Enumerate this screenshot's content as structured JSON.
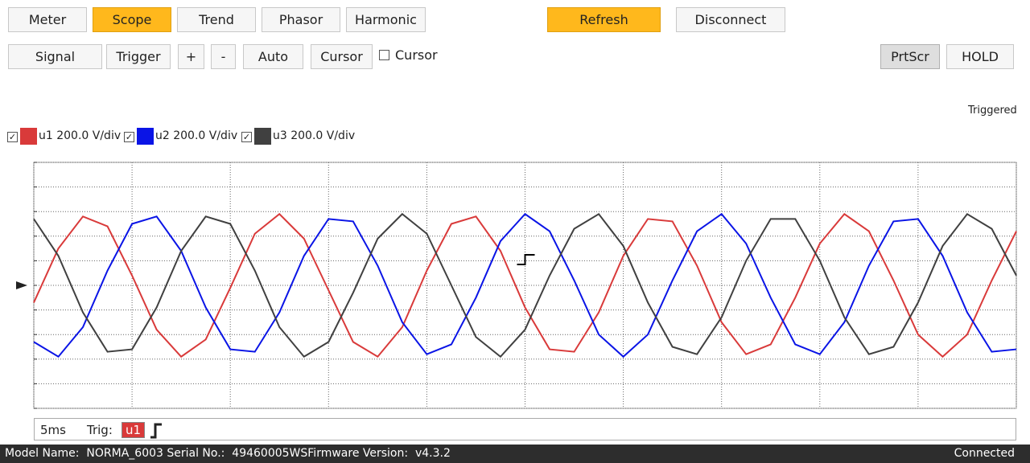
{
  "toolbar": {
    "tabs": [
      {
        "label": "Meter",
        "highlighted": false
      },
      {
        "label": "Scope",
        "highlighted": true
      },
      {
        "label": "Trend",
        "highlighted": false
      },
      {
        "label": "Phasor",
        "highlighted": false
      },
      {
        "label": "Harmonic",
        "highlighted": false
      }
    ],
    "actions": [
      {
        "label": "Refresh",
        "highlighted": true
      },
      {
        "label": "Disconnect",
        "highlighted": false
      }
    ],
    "tools": [
      {
        "label": "Signal"
      },
      {
        "label": "Trigger"
      },
      {
        "label": "+"
      },
      {
        "label": "-"
      },
      {
        "label": "Auto"
      },
      {
        "label": "Cursor"
      }
    ],
    "cursor_checkbox": {
      "label": "Cursor",
      "checked": false
    },
    "right_tools": [
      {
        "label": "PrtScr",
        "pressed": true
      },
      {
        "label": "HOLD",
        "pressed": false
      }
    ]
  },
  "chart_data": {
    "type": "line",
    "status": "Triggered",
    "grid": true,
    "xlim": [
      0,
      10
    ],
    "ylim": [
      -5,
      5
    ],
    "xticks": [
      0,
      1,
      2,
      3,
      4,
      5,
      6,
      7,
      8,
      9,
      10
    ],
    "yticks": [
      -5,
      -4,
      -3,
      -2,
      -1,
      0,
      1,
      2,
      3,
      4,
      5
    ],
    "x": [
      0,
      0.25,
      0.5,
      0.75,
      1,
      1.25,
      1.5,
      1.75,
      2,
      2.25,
      2.5,
      2.75,
      3,
      3.25,
      3.5,
      3.75,
      4,
      4.25,
      4.5,
      4.75,
      5,
      5.25,
      5.5,
      5.75,
      6,
      6.25,
      6.5,
      6.75,
      7,
      7.25,
      7.5,
      7.75,
      8,
      8.25,
      8.5,
      8.75,
      9,
      9.25,
      9.5,
      9.75,
      10
    ],
    "series": [
      {
        "name": "u1 200.0 V/div",
        "color": "#d93a3a",
        "checked": true,
        "values": [
          -0.7,
          1.5,
          2.8,
          2.4,
          0.4,
          -1.8,
          -2.9,
          -2.2,
          -0.1,
          2.1,
          2.9,
          1.9,
          -0.2,
          -2.3,
          -2.9,
          -1.7,
          0.6,
          2.5,
          2.8,
          1.4,
          -0.9,
          -2.6,
          -2.7,
          -1.1,
          1.2,
          2.7,
          2.6,
          0.8,
          -1.5,
          -2.8,
          -2.4,
          -0.5,
          1.7,
          2.9,
          2.2,
          0.2,
          -2.0,
          -2.9,
          -2.0,
          0.2,
          2.2
        ]
      },
      {
        "name": "u2 200.0 V/div",
        "color": "#0a14e6",
        "checked": true,
        "values": [
          -2.3,
          -2.9,
          -1.7,
          0.6,
          2.5,
          2.8,
          1.4,
          -0.9,
          -2.6,
          -2.7,
          -1.1,
          1.2,
          2.7,
          2.6,
          0.8,
          -1.5,
          -2.8,
          -2.4,
          -0.5,
          1.8,
          2.9,
          2.2,
          0.2,
          -2.0,
          -2.9,
          -2.0,
          0.2,
          2.2,
          2.9,
          1.7,
          -0.5,
          -2.4,
          -2.8,
          -1.5,
          0.8,
          2.6,
          2.7,
          1.2,
          -1.1,
          -2.7,
          -2.6
        ]
      },
      {
        "name": "u3 200.0 V/div",
        "color": "#404040",
        "checked": true,
        "values": [
          2.7,
          1.2,
          -1.1,
          -2.7,
          -2.6,
          -0.9,
          1.4,
          2.8,
          2.5,
          0.6,
          -1.7,
          -2.9,
          -2.3,
          -0.3,
          1.9,
          2.9,
          2.1,
          0,
          -2.1,
          -2.9,
          -1.8,
          0.4,
          2.3,
          2.9,
          1.6,
          -0.7,
          -2.5,
          -2.8,
          -1.3,
          1.0,
          2.7,
          2.7,
          1.0,
          -1.3,
          -2.8,
          -2.5,
          -0.7,
          1.6,
          2.9,
          2.3,
          0.4
        ]
      }
    ]
  },
  "scope_footer": {
    "timebase": "5ms",
    "trigger_label": "Trig:",
    "trigger_source": "u1"
  },
  "status_bar": {
    "device": "Model Name:  NORMA_6003 Serial No.:  49460005WSFirmware Version:  v4.3.2",
    "connection": "Connected"
  }
}
